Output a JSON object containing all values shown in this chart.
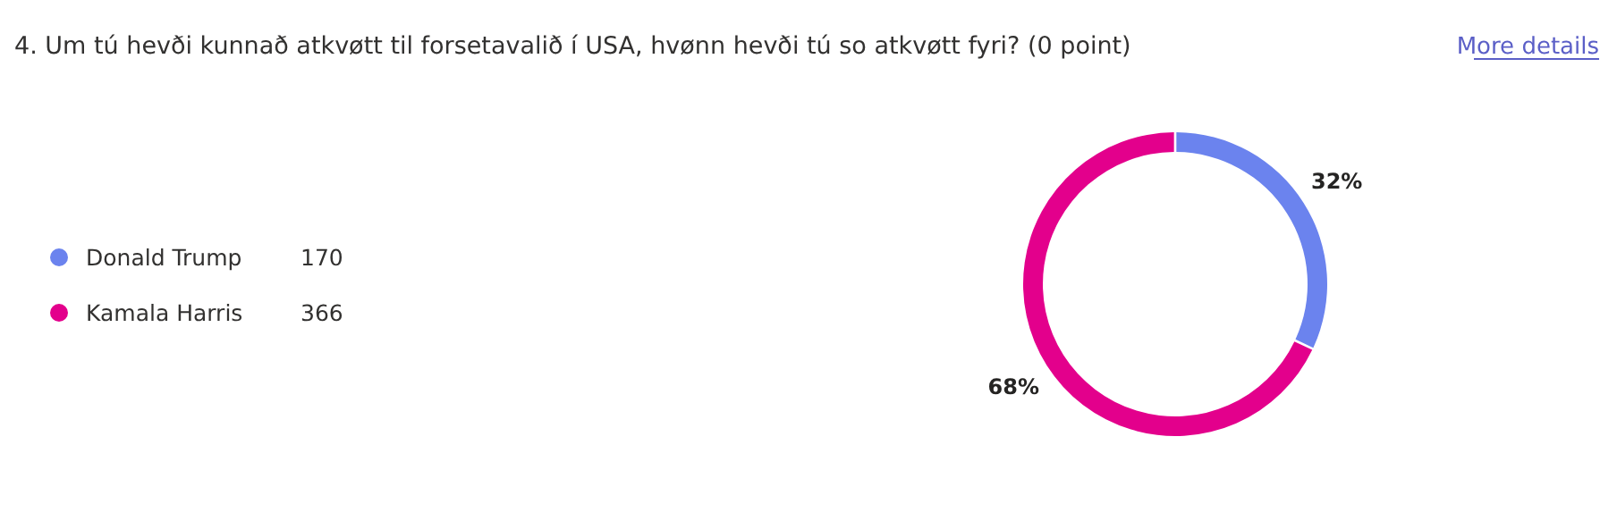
{
  "chart_data": {
    "type": "donut",
    "title": "4. Um tú hevði kunnað atkvøtt til forsetavalið í USA, hvønn hevði tú so atkvøtt fyri? (0 point)",
    "categories": [
      "Donald Trump",
      "Kamala Harris"
    ],
    "values": [
      32,
      68
    ],
    "value_labels": [
      "32%",
      "68%"
    ],
    "colors": [
      "#6b83ee",
      "#e3008c"
    ],
    "legend": "left",
    "annotations": [
      "More details",
      "170",
      "366"
    ]
  }
}
